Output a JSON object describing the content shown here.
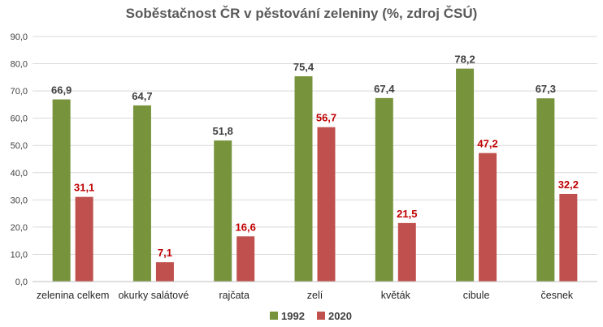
{
  "chart_data": {
    "type": "bar",
    "title": "Soběstačnost ČR v pěstování zeleniny (%, zdroj ČSÚ)",
    "xlabel": "",
    "ylabel": "",
    "categories": [
      "zelenina celkem",
      "okurky salátové",
      "rajčata",
      "zelí",
      "květák",
      "cibule",
      "česnek"
    ],
    "series": [
      {
        "name": "1992",
        "color": "#77933c",
        "values": [
          66.9,
          64.7,
          51.8,
          75.4,
          67.4,
          78.2,
          67.3
        ],
        "labels": [
          "66,9",
          "64,7",
          "51,8",
          "75,4",
          "67,4",
          "78,2",
          "67,3"
        ],
        "label_color": "#404040"
      },
      {
        "name": "2020",
        "color": "#c0504d",
        "values": [
          31.1,
          7.1,
          16.6,
          56.7,
          21.5,
          47.2,
          32.2
        ],
        "labels": [
          "31,1",
          "7,1",
          "16,6",
          "56,7",
          "21,5",
          "47,2",
          "32,2"
        ],
        "label_color": "#c00000"
      }
    ],
    "ylim": [
      0,
      90
    ],
    "yticks": [
      "0,0",
      "10,0",
      "20,0",
      "30,0",
      "40,0",
      "50,0",
      "60,0",
      "70,0",
      "80,0",
      "90,0"
    ],
    "grid": true,
    "legend_position": "bottom"
  }
}
